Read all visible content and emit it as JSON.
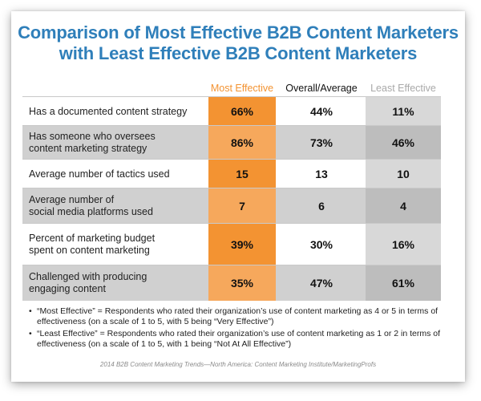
{
  "chart_data": {
    "type": "table",
    "title": "Comparison of Most Effective B2B Content Marketers\nwith Least Effective B2B Content Marketers",
    "columns": [
      "Most Effective",
      "Overall/Average",
      "Least Effective"
    ],
    "rows": [
      {
        "label": "Has a documented content strategy",
        "values": [
          "66%",
          "44%",
          "11%"
        ]
      },
      {
        "label": "Has someone who oversees\ncontent marketing strategy",
        "values": [
          "86%",
          "73%",
          "46%"
        ]
      },
      {
        "label": "Average number of tactics used",
        "values": [
          "15",
          "13",
          "10"
        ]
      },
      {
        "label": "Average number of\nsocial media platforms used",
        "values": [
          "7",
          "6",
          "4"
        ]
      },
      {
        "label": "Percent of marketing budget\nspent on content marketing",
        "values": [
          "39%",
          "30%",
          "16%"
        ]
      },
      {
        "label": "Challenged with producing\nengaging content",
        "values": [
          "35%",
          "47%",
          "61%"
        ]
      }
    ]
  },
  "notes": [
    "“Most Effective” = Respondents who rated their organization’s use of content marketing as 4 or 5 in terms of effectiveness (on a scale of 1 to 5, with 5 being “Very Effective”)",
    "“Least Effective” = Respondents who rated their organization’s use of content marketing as 1 or 2 in terms of effectiveness (on a scale of 1 to 5, with 1 being “Not At All Effective”)"
  ],
  "bullet": "•",
  "source": "2014 B2B Content Marketing Trends—North America: Content Marketing Institute/MarketingProfs",
  "colors": {
    "title": "#2f7fba",
    "most_effective": "#f39332",
    "least_effective_header": "#a9a9a9",
    "row_gray": "#d0d0d0"
  }
}
